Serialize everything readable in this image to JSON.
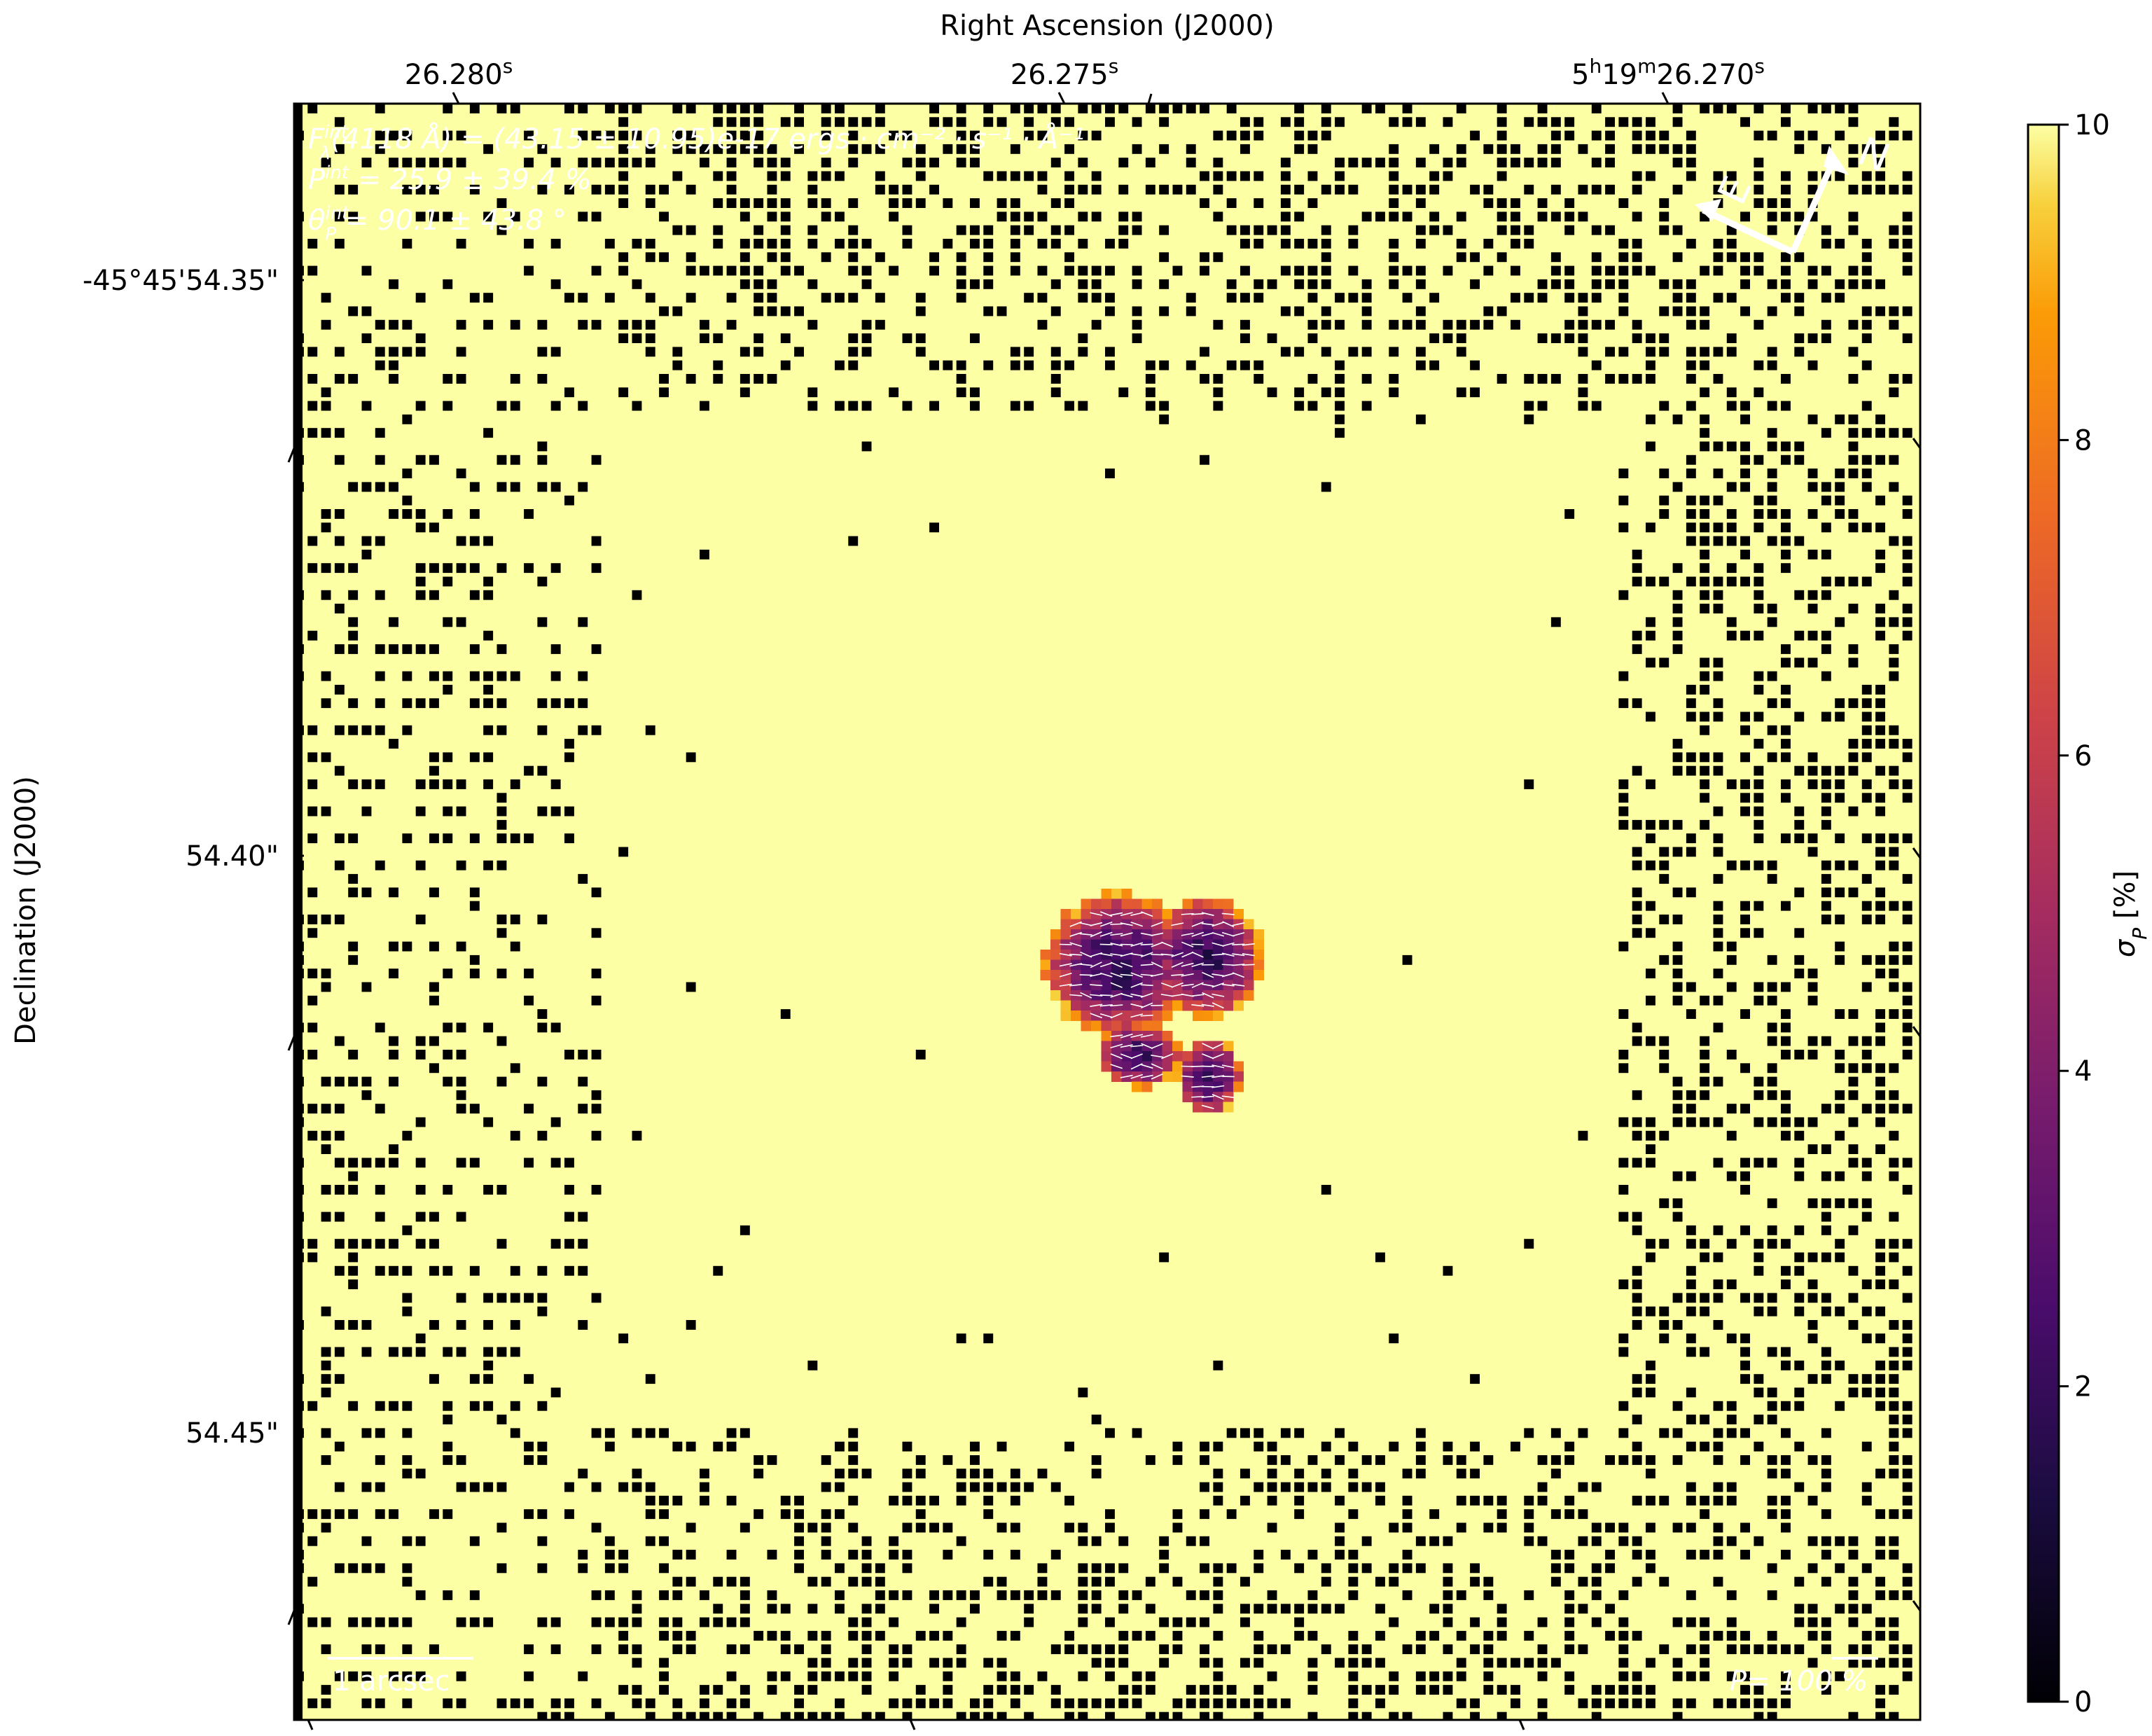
{
  "chart_data": {
    "type": "heatmap",
    "title": "",
    "xlabel": "Right Ascension (J2000)",
    "ylabel": "Declination (J2000)",
    "x_ticks": [
      {
        "main": "26.280",
        "sup": "s",
        "pre": "",
        "pre_sup": "",
        "mid": "",
        "mid_sup": "",
        "value": 26.28
      },
      {
        "main": "26.275",
        "sup": "s",
        "pre": "",
        "pre_sup": "",
        "mid": "",
        "mid_sup": "",
        "value": 26.275
      },
      {
        "main": "26.270",
        "sup": "s",
        "pre": "5",
        "pre_sup": "h",
        "mid": "19",
        "mid_sup": "m",
        "value": 26.27
      }
    ],
    "y_ticks": [
      {
        "label": "-45°45'54.35\"",
        "value": 54.35
      },
      {
        "label": "54.40\"",
        "value": 54.4
      },
      {
        "label": "54.45\"",
        "value": 54.45
      }
    ],
    "colorbar": {
      "label": "σ",
      "label_sub": "P",
      "label_unit": " [%]",
      "min": 0,
      "max": 10,
      "ticks": [
        "0",
        "2",
        "4",
        "6",
        "8",
        "10"
      ],
      "colormap": "inferno"
    },
    "annotations": {
      "flux_line": "F",
      "flux_sup": "int",
      "flux_sub": "λ",
      "flux_text": "(4118 Å) = (43.15 ± 10.95)e-17 ergs · cm⁻² · s⁻¹ · Å⁻¹",
      "p_sym": "P",
      "p_sup": "int",
      "p_text": " = 25.9 ± 39.4 %",
      "theta_sym": "θ",
      "theta_sub": "P",
      "theta_sup": "int",
      "theta_text": " = 90.1 ± 43.8 °",
      "scalebar": "1 arcsec",
      "pol_scale": "P= 100 %",
      "compass_north": "N",
      "compass_east": "E"
    },
    "background_value": 10,
    "source_region": {
      "center_ra_s": 26.275,
      "center_dec_s": 54.407,
      "description_values_percent": [
        2,
        3,
        4,
        5,
        6,
        7,
        8
      ]
    }
  }
}
